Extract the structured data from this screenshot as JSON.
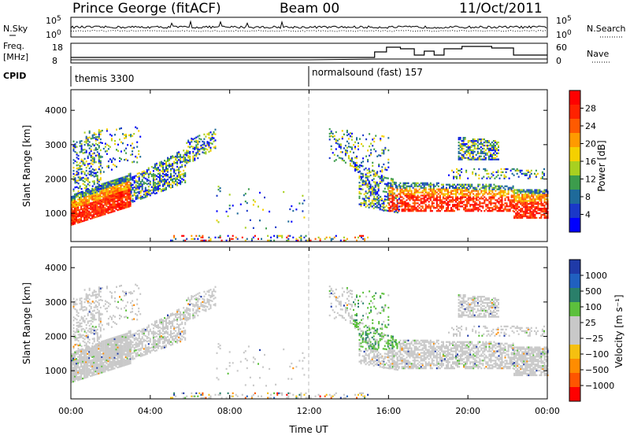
{
  "header": {
    "title": "Prince George (fitACF)",
    "beam": "Beam 00",
    "date": "11/Oct/2011"
  },
  "side_labels": {
    "nsky": "N.Sky",
    "nsearch": "N.Search",
    "freq": "Freq.",
    "freq_unit": "[MHz]",
    "nave": "Nave",
    "cpid": "CPID"
  },
  "strips": {
    "noise_left_ticks": [
      "10^5",
      "10^0"
    ],
    "noise_right_ticks": [
      "10^5",
      "10^0"
    ],
    "freq_left_ticks": [
      "18",
      "8"
    ],
    "freq_right_ticks": [
      "60",
      "0"
    ]
  },
  "cpid_segments": [
    {
      "label": "themis 3300",
      "start_hour": 0,
      "end_hour": 12
    },
    {
      "label": "normalsound (fast) 157",
      "start_hour": 12,
      "end_hour": 24
    }
  ],
  "colorbars": {
    "power": {
      "label": "Power [dB]",
      "ticks": [
        "28",
        "24",
        "20",
        "16",
        "12",
        "8",
        "4"
      ],
      "colors": [
        "#ff0000",
        "#ff2200",
        "#ff5a00",
        "#ff9a00",
        "#f5d000",
        "#a8d020",
        "#3c9c4c",
        "#1e6a9a",
        "#1a38c8",
        "#0000ff"
      ]
    },
    "velocity": {
      "label": "Velocity [m s⁻¹]",
      "ticks": [
        "1000",
        "500",
        "100",
        "25",
        "−25",
        "−100",
        "−500",
        "−1000"
      ],
      "colors": [
        "#1f3aa8",
        "#2060c0",
        "#2a7f6a",
        "#5cc03c",
        "#c8c8c8",
        "#c8c8c8",
        "#f5c010",
        "#ff8c00",
        "#ff5500",
        "#ff0000"
      ]
    }
  },
  "chart_data": [
    {
      "type": "heatmap",
      "name": "power",
      "ylabel": "Slant Range [km]",
      "xlim": [
        0,
        24
      ],
      "ylim": [
        180,
        4600
      ],
      "yticks": [
        1000,
        2000,
        3000,
        4000
      ],
      "colorbar_label": "Power [dB]"
    },
    {
      "type": "heatmap",
      "name": "velocity",
      "ylabel": "Slant Range [km]",
      "xlabel": "Time UT",
      "xlim": [
        0,
        24
      ],
      "ylim": [
        180,
        4600
      ],
      "yticks": [
        1000,
        2000,
        3000,
        4000
      ],
      "xtick_labels": [
        "00:00",
        "04:00",
        "08:00",
        "12:00",
        "16:00",
        "20:00",
        "00:00"
      ],
      "colorbar_label": "Velocity [m s⁻¹]"
    }
  ]
}
